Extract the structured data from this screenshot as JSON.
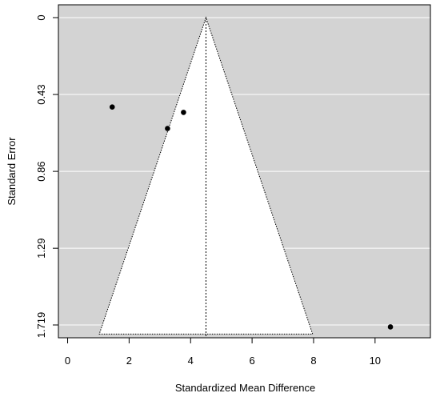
{
  "chart_data": {
    "type": "scatter",
    "subtype": "funnel-plot",
    "title": "",
    "xlabel": "Standardized Mean Difference",
    "ylabel": "Standard Error",
    "xlim": [
      -0.3,
      11.8
    ],
    "ylim": [
      1.719,
      0
    ],
    "y_inverted": true,
    "x_ticks": [
      0,
      2,
      4,
      6,
      8,
      10
    ],
    "y_ticks": [
      0,
      0.43,
      0.86,
      1.29,
      1.719
    ],
    "y_tick_labels": [
      "0",
      "0.43",
      "0.86",
      "1.29",
      "1.719"
    ],
    "points": [
      {
        "x": 1.45,
        "y": 0.5
      },
      {
        "x": 3.25,
        "y": 0.62
      },
      {
        "x": 3.77,
        "y": 0.53
      },
      {
        "x": 10.5,
        "y": 1.73
      }
    ],
    "pooled_estimate": 4.5,
    "funnel": {
      "apex": [
        4.5,
        0
      ],
      "base_left": [
        1.03,
        1.77
      ],
      "base_right": [
        7.97,
        1.77
      ]
    },
    "grid": true,
    "colors": {
      "panel": "#d3d3d3",
      "funnel_fill": "#ffffff",
      "grid": "#ffffff",
      "point": "#000000"
    }
  }
}
